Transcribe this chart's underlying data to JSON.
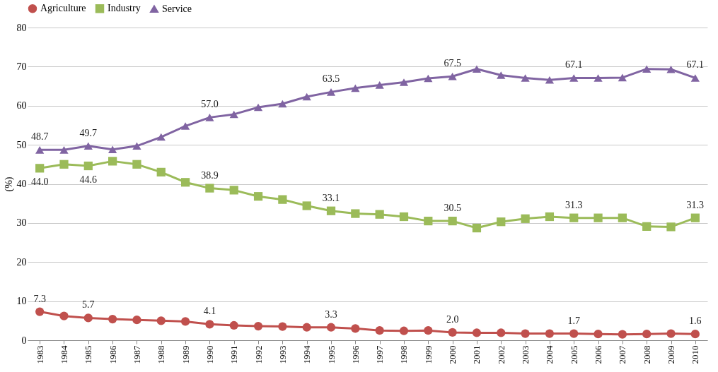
{
  "chart_data": {
    "type": "line",
    "ylabel": "(%)",
    "categories": [
      "1983",
      "1984",
      "1985",
      "1986",
      "1987",
      "1988",
      "1989",
      "1990",
      "1991",
      "1992",
      "1993",
      "1994",
      "1995",
      "1996",
      "1997",
      "1998",
      "1999",
      "2000",
      "2001",
      "2002",
      "2003",
      "2004",
      "2005",
      "2006",
      "2007",
      "2008",
      "2009",
      "2010"
    ],
    "series": [
      {
        "name": "Agriculture",
        "color": "#c0504d",
        "marker": "circle",
        "values": [
          7.3,
          6.2,
          5.7,
          5.4,
          5.2,
          5.0,
          4.8,
          4.1,
          3.8,
          3.6,
          3.5,
          3.3,
          3.3,
          3.0,
          2.5,
          2.4,
          2.5,
          2.0,
          1.9,
          1.9,
          1.7,
          1.7,
          1.7,
          1.6,
          1.5,
          1.6,
          1.7,
          1.6
        ],
        "value_labels": [
          "7.3",
          null,
          "5.7",
          null,
          null,
          null,
          null,
          "4.1",
          null,
          null,
          null,
          null,
          "3.3",
          null,
          null,
          null,
          null,
          "2.0",
          null,
          null,
          null,
          null,
          "1.7",
          null,
          null,
          null,
          null,
          "1.6"
        ]
      },
      {
        "name": "Industry",
        "color": "#9bbb59",
        "marker": "square",
        "values": [
          44.0,
          45.0,
          44.6,
          45.8,
          45.0,
          43.0,
          40.4,
          38.9,
          38.4,
          36.8,
          36.0,
          34.4,
          33.1,
          32.4,
          32.2,
          31.6,
          30.5,
          30.5,
          28.7,
          30.3,
          31.1,
          31.6,
          31.3,
          31.3,
          31.3,
          29.1,
          29.0,
          31.3
        ],
        "value_labels": [
          "44.0",
          null,
          "44.6",
          null,
          null,
          null,
          null,
          "38.9",
          null,
          null,
          null,
          null,
          "33.1",
          null,
          null,
          null,
          null,
          "30.5",
          null,
          null,
          null,
          null,
          "31.3",
          null,
          null,
          null,
          null,
          "31.3"
        ]
      },
      {
        "name": "Service",
        "color": "#8064a2",
        "marker": "triangle",
        "values": [
          48.7,
          48.7,
          49.7,
          48.8,
          49.7,
          52.0,
          54.8,
          57.0,
          57.8,
          59.6,
          60.5,
          62.3,
          63.5,
          64.5,
          65.3,
          66.0,
          67.0,
          67.5,
          69.4,
          67.8,
          67.1,
          66.6,
          67.1,
          67.1,
          67.2,
          69.4,
          69.3,
          67.1
        ],
        "value_labels": [
          "48.7",
          null,
          "49.7",
          null,
          null,
          null,
          null,
          "57.0",
          null,
          null,
          null,
          null,
          "63.5",
          null,
          null,
          null,
          null,
          "67.5",
          null,
          null,
          null,
          null,
          "67.1",
          null,
          null,
          null,
          null,
          "67.1"
        ]
      }
    ],
    "ylim": [
      0,
      80
    ],
    "yticks": [
      0,
      10,
      20,
      30,
      40,
      50,
      60,
      70,
      80
    ],
    "grid": "y",
    "legend": "top",
    "line_style": "solid"
  }
}
